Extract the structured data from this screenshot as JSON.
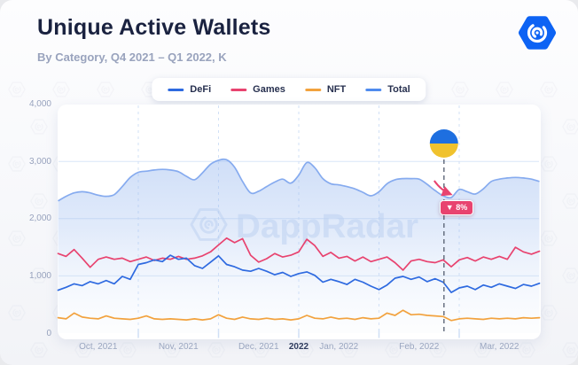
{
  "header": {
    "title": "Unique Active Wallets",
    "subtitle": "By Category, Q4 2021 – Q1 2022, K"
  },
  "logo": {
    "name": "dappradar-logo",
    "color": "#0d63f4"
  },
  "watermark": {
    "text": "DappRadar"
  },
  "legend": {
    "items": [
      {
        "label": "DeFi",
        "color": "#2e6ae0"
      },
      {
        "label": "Games",
        "color": "#e8436f"
      },
      {
        "label": "NFT",
        "color": "#f2a23e"
      },
      {
        "label": "Total",
        "color": "#4f8bee"
      }
    ]
  },
  "chart_data": {
    "type": "line",
    "title": "Unique Active Wallets",
    "subtitle": "By Category, Q4 2021 – Q1 2022, K",
    "unit": "K (thousands of wallets)",
    "legend_position": "top",
    "x_axis": {
      "range_t": [
        0,
        6
      ],
      "t_unit": "months since Oct 1, 2021 (equal-width months)",
      "tick_labels": [
        {
          "label": "Oct, 2021",
          "t": 0.5,
          "bold": false
        },
        {
          "label": "Nov, 2021",
          "t": 1.5,
          "bold": false
        },
        {
          "label": "Dec, 2021",
          "t": 2.5,
          "bold": false
        },
        {
          "label": "2022",
          "t": 3.0,
          "bold": true
        },
        {
          "label": "Jan, 2022",
          "t": 3.5,
          "bold": false
        },
        {
          "label": "Feb, 2022",
          "t": 4.5,
          "bold": false
        },
        {
          "label": "Mar, 2022",
          "t": 5.5,
          "bold": false
        }
      ],
      "gridlines_t": [
        1,
        2,
        3,
        4,
        5
      ],
      "gridline_style": "dashed"
    },
    "y_axis": {
      "range": [
        0,
        4000
      ],
      "ticks": [
        {
          "label": "0",
          "value": 0
        },
        {
          "label": "1,000",
          "value": 1000
        },
        {
          "label": "2,000",
          "value": 2000
        },
        {
          "label": "3,000",
          "value": 3000
        },
        {
          "label": "4,000",
          "value": 4000
        }
      ],
      "gridline_values": [
        1000,
        2000,
        3000
      ]
    },
    "series": [
      {
        "name": "Total",
        "color": "#86abef",
        "smooth": true,
        "area": true,
        "area_gradient": [
          "#9dbcf0",
          "#eaf1fb"
        ],
        "t_start": 0,
        "t_step": 0.1,
        "values": [
          2310,
          2390,
          2450,
          2470,
          2450,
          2410,
          2390,
          2420,
          2560,
          2720,
          2810,
          2830,
          2850,
          2860,
          2850,
          2820,
          2740,
          2680,
          2800,
          2950,
          3020,
          3030,
          2900,
          2650,
          2450,
          2480,
          2560,
          2640,
          2690,
          2620,
          2760,
          2980,
          2890,
          2700,
          2610,
          2590,
          2560,
          2520,
          2460,
          2400,
          2470,
          2610,
          2680,
          2700,
          2700,
          2690,
          2600,
          2490,
          2400,
          2370,
          2510,
          2470,
          2430,
          2520,
          2650,
          2690,
          2710,
          2720,
          2710,
          2690,
          2650
        ]
      },
      {
        "name": "Games",
        "color": "#e8436f",
        "smooth": false,
        "area": false,
        "t_start": 0,
        "t_step": 0.1,
        "values": [
          1390,
          1340,
          1460,
          1310,
          1150,
          1290,
          1330,
          1290,
          1310,
          1250,
          1290,
          1330,
          1270,
          1310,
          1290,
          1340,
          1290,
          1310,
          1350,
          1420,
          1540,
          1660,
          1580,
          1650,
          1360,
          1240,
          1300,
          1390,
          1330,
          1360,
          1420,
          1640,
          1530,
          1340,
          1410,
          1310,
          1340,
          1260,
          1330,
          1250,
          1290,
          1330,
          1230,
          1100,
          1260,
          1290,
          1250,
          1230,
          1280,
          1160,
          1280,
          1320,
          1260,
          1330,
          1290,
          1340,
          1290,
          1500,
          1420,
          1380,
          1430
        ]
      },
      {
        "name": "DeFi",
        "color": "#2e6ae0",
        "smooth": false,
        "area": false,
        "t_start": 0,
        "t_step": 0.1,
        "values": [
          750,
          800,
          860,
          830,
          900,
          860,
          920,
          860,
          990,
          940,
          1200,
          1230,
          1280,
          1250,
          1360,
          1290,
          1310,
          1180,
          1130,
          1240,
          1350,
          1200,
          1160,
          1100,
          1080,
          1130,
          1080,
          1020,
          1060,
          990,
          1040,
          1070,
          1010,
          890,
          940,
          900,
          850,
          940,
          890,
          820,
          760,
          840,
          960,
          990,
          940,
          980,
          900,
          950,
          890,
          710,
          790,
          820,
          760,
          840,
          800,
          860,
          820,
          780,
          850,
          820,
          870
        ]
      },
      {
        "name": "NFT",
        "color": "#f2a23e",
        "smooth": false,
        "area": false,
        "t_start": 0,
        "t_step": 0.1,
        "values": [
          270,
          250,
          350,
          280,
          260,
          250,
          300,
          260,
          250,
          240,
          260,
          300,
          250,
          240,
          250,
          240,
          230,
          250,
          230,
          250,
          320,
          260,
          240,
          280,
          250,
          240,
          260,
          240,
          250,
          230,
          250,
          310,
          260,
          250,
          280,
          250,
          260,
          240,
          270,
          250,
          260,
          350,
          310,
          400,
          320,
          330,
          310,
          300,
          290,
          220,
          250,
          260,
          250,
          240,
          260,
          250,
          260,
          250,
          270,
          260,
          270
        ]
      }
    ],
    "annotation": {
      "t": 4.81,
      "marker": "ukraine-flag",
      "flag_colors": [
        "#1e6fe0",
        "#f0c22e"
      ],
      "badge_label": "▼ 8%",
      "badge_color": "#e8436f"
    }
  }
}
